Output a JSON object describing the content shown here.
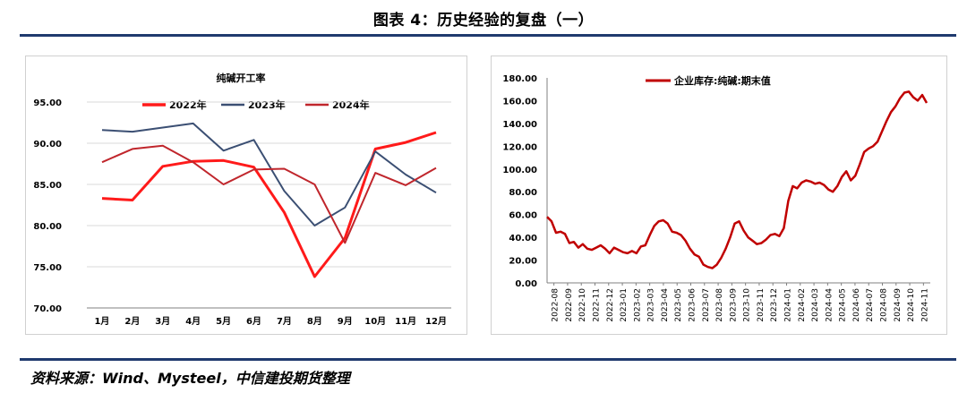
{
  "figure": {
    "title": "图表 4：历史经验的复盘（一）",
    "source": "资料来源：Wind、Mysteel，中信建投期货整理"
  },
  "colors": {
    "s2022": "#ff1a1a",
    "s2023": "#3b4f73",
    "s2024": "#c0262c",
    "inventory": "#c00000",
    "rule": "#1f3a6e"
  },
  "chart_data": [
    {
      "type": "line",
      "title": "纯碱开工率",
      "categories": [
        "1月",
        "2月",
        "3月",
        "4月",
        "5月",
        "6月",
        "7月",
        "8月",
        "9月",
        "10月",
        "11月",
        "12月"
      ],
      "series": [
        {
          "name": "2022年",
          "values": [
            83.3,
            83.1,
            87.2,
            87.8,
            87.9,
            87.1,
            81.6,
            73.8,
            78.5,
            89.3,
            90.1,
            91.3
          ]
        },
        {
          "name": "2023年",
          "values": [
            91.6,
            91.4,
            91.9,
            92.4,
            89.1,
            90.4,
            84.2,
            80.0,
            82.2,
            89.0,
            86.2,
            84.0
          ]
        },
        {
          "name": "2024年",
          "values": [
            87.7,
            89.3,
            89.7,
            87.7,
            85.0,
            86.8,
            86.9,
            85.0,
            77.9,
            86.4,
            84.9,
            87.0
          ]
        }
      ],
      "ylim": [
        70,
        95
      ],
      "yticks": [
        "70.00",
        "75.00",
        "80.00",
        "85.00",
        "90.00",
        "95.00"
      ],
      "legend": "top"
    },
    {
      "type": "line",
      "title": "",
      "series": [
        {
          "name": "企业库存:纯碱:期末值",
          "values": [
            58,
            54,
            44,
            45,
            43,
            35,
            36,
            31,
            34,
            30,
            29,
            31,
            33,
            30,
            26,
            31,
            29,
            27,
            26,
            28,
            26,
            32,
            33,
            42,
            50,
            54,
            55,
            52,
            45,
            44,
            42,
            37,
            30,
            25,
            23,
            16,
            14,
            13,
            16,
            22,
            30,
            40,
            52,
            54,
            46,
            40,
            37,
            34,
            35,
            38,
            42,
            43,
            41,
            48,
            72,
            85,
            83,
            88,
            90,
            89,
            87,
            88,
            86,
            82,
            80,
            85,
            93,
            98,
            90,
            94,
            104,
            115,
            118,
            120,
            124,
            133,
            142,
            150,
            155,
            162,
            167,
            168,
            163,
            160,
            165,
            158
          ]
        }
      ],
      "x_tick_labels": [
        "2022-08",
        "2022-09",
        "2022-10",
        "2022-11",
        "2022-12",
        "2023-01",
        "2023-02",
        "2023-03",
        "2023-04",
        "2023-05",
        "2023-06",
        "2023-07",
        "2023-08",
        "2023-09",
        "2023-10",
        "2023-11",
        "2023-12",
        "2024-01",
        "2024-02",
        "2024-03",
        "2024-04",
        "2024-05",
        "2024-06",
        "2024-07",
        "2024-08",
        "2024-09",
        "2024-10",
        "2024-11"
      ],
      "ylim": [
        0,
        180
      ],
      "yticks": [
        "0.00",
        "20.00",
        "40.00",
        "60.00",
        "80.00",
        "100.00",
        "120.00",
        "140.00",
        "160.00",
        "180.00"
      ],
      "legend": "top"
    }
  ]
}
